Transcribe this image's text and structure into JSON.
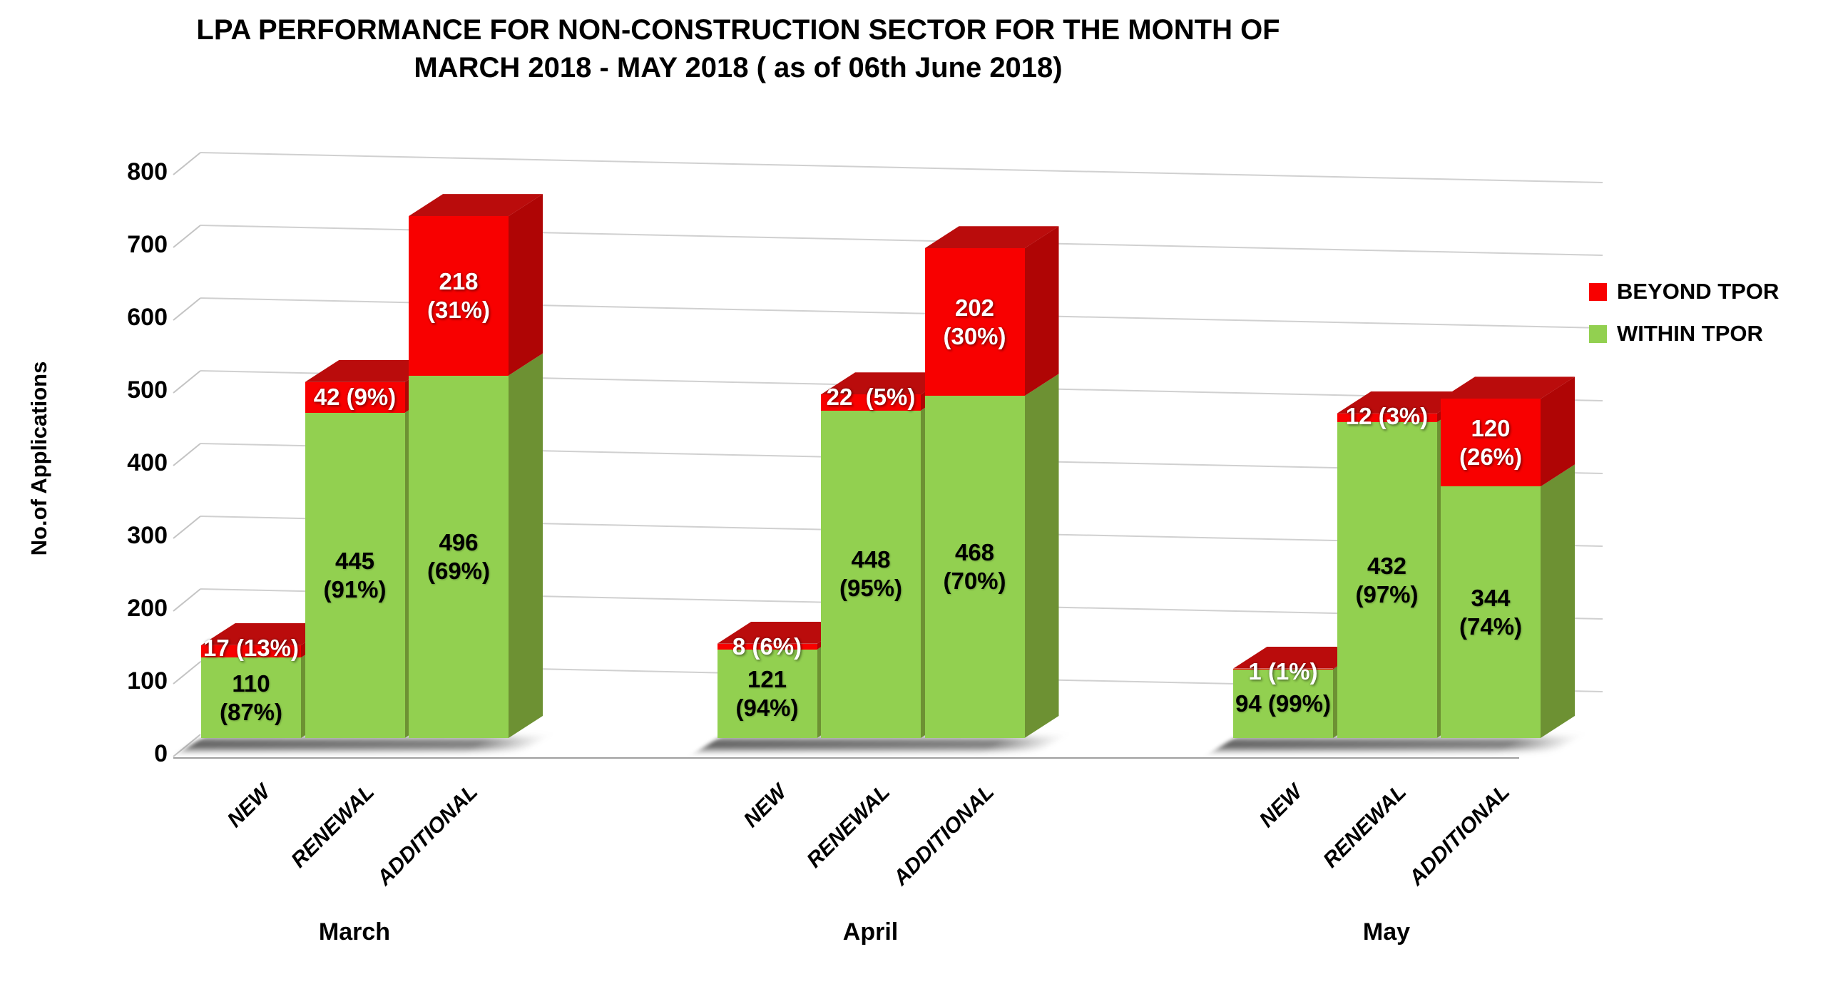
{
  "title": {
    "line1": "LPA PERFORMANCE FOR NON-CONSTRUCTION SECTOR FOR THE MONTH OF",
    "line2": "MARCH 2018 - MAY 2018 ( as of 06th June 2018)"
  },
  "y_axis": {
    "title": "No.of Applications",
    "ticks": [
      "0",
      "100",
      "200",
      "300",
      "400",
      "500",
      "600",
      "700",
      "800"
    ]
  },
  "legend": {
    "items": [
      {
        "label": "BEYOND TPOR",
        "color": "#F80000"
      },
      {
        "label": "WITHIN TPOR",
        "color": "#92D050"
      }
    ]
  },
  "chart_data": {
    "type": "bar",
    "stacked": true,
    "projection": "3d",
    "title": "LPA PERFORMANCE FOR NON-CONSTRUCTION SECTOR FOR THE MONTH OF MARCH 2018 - MAY 2018 ( as of 06th June 2018)",
    "ylabel": "No.of Applications",
    "ylim": [
      0,
      800
    ],
    "y_tick_step": 100,
    "grid": true,
    "legend_position": "right",
    "groups": [
      "March",
      "April",
      "May"
    ],
    "categories": [
      "NEW",
      "RENEWAL",
      "ADDITIONAL"
    ],
    "series": [
      {
        "name": "WITHIN TPOR",
        "color": "#92D050",
        "side_color": "#6D9133",
        "values": [
          [
            110,
            445,
            496
          ],
          [
            121,
            448,
            468
          ],
          [
            94,
            432,
            344
          ]
        ],
        "pct": [
          [
            "87%",
            "91%",
            "69%"
          ],
          [
            "94%",
            "95%",
            "70%"
          ],
          [
            "99%",
            "97%",
            "74%"
          ]
        ]
      },
      {
        "name": "BEYOND TPOR",
        "color": "#F80000",
        "side_color": "#AF0505",
        "top_color": "#BA0C0C",
        "values": [
          [
            17,
            42,
            218
          ],
          [
            8,
            22,
            202
          ],
          [
            1,
            12,
            120
          ]
        ],
        "pct": [
          [
            "13%",
            "9%",
            "31%"
          ],
          [
            "6%",
            "5%",
            "30%"
          ],
          [
            "1%",
            "3%",
            "26%"
          ]
        ]
      }
    ],
    "bar_labels": {
      "within": [
        [
          [
            "110",
            "(87%)"
          ],
          [
            "445",
            "(91%)"
          ],
          [
            "496",
            "(69%)"
          ]
        ],
        [
          [
            "121",
            "(94%)"
          ],
          [
            "448",
            "(95%)"
          ],
          [
            "468",
            "(70%)"
          ]
        ],
        [
          [
            "94 (99%)"
          ],
          [
            "432",
            "(97%)"
          ],
          [
            "344",
            "(74%)"
          ]
        ]
      ],
      "beyond": [
        [
          [
            "17 (13%)"
          ],
          [
            "42 (9%)"
          ],
          [
            "218",
            "(31%)"
          ]
        ],
        [
          [
            "8 (6%)"
          ],
          [
            "22  (5%)"
          ],
          [
            "202",
            "(30%)"
          ]
        ],
        [
          [
            "1 (1%)"
          ],
          [
            "12 (3%)"
          ],
          [
            "120",
            "(26%)"
          ]
        ]
      ]
    }
  }
}
